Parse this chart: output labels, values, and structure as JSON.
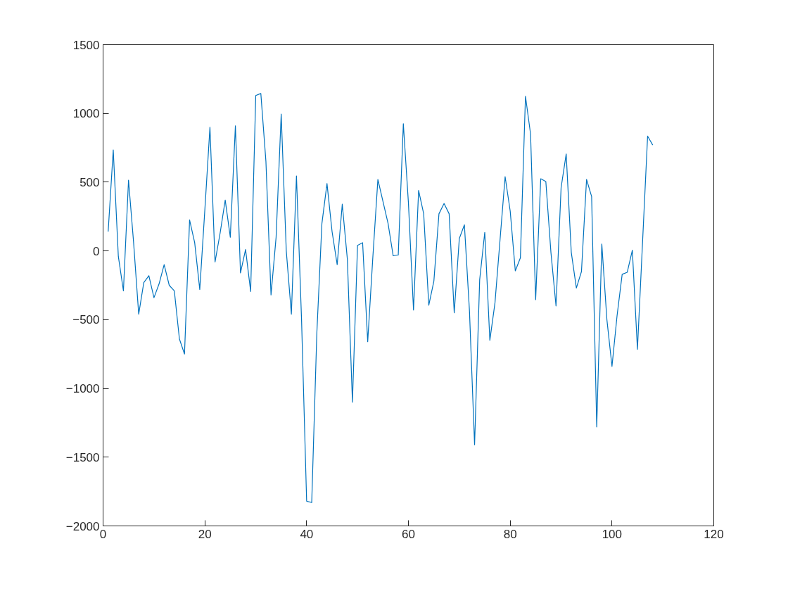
{
  "chart_data": {
    "type": "line",
    "x": [
      1,
      2,
      3,
      4,
      5,
      6,
      7,
      8,
      9,
      10,
      11,
      12,
      13,
      14,
      15,
      16,
      17,
      18,
      19,
      20,
      21,
      22,
      23,
      24,
      25,
      26,
      27,
      28,
      29,
      30,
      31,
      32,
      33,
      34,
      35,
      36,
      37,
      38,
      39,
      40,
      41,
      42,
      43,
      44,
      45,
      46,
      47,
      48,
      49,
      50,
      51,
      52,
      53,
      54,
      55,
      56,
      57,
      58,
      59,
      60,
      61,
      62,
      63,
      64,
      65,
      66,
      67,
      68,
      69,
      70,
      71,
      72,
      73,
      74,
      75,
      76,
      77,
      78,
      79,
      80,
      81,
      82,
      83,
      84,
      85,
      86,
      87,
      88,
      89,
      90,
      91,
      92,
      93,
      94,
      95,
      96,
      97,
      98,
      99,
      100,
      101,
      102,
      103,
      104,
      105,
      106,
      107,
      108
    ],
    "series": [
      {
        "color": "#0072bd",
        "values": [
          140,
          735,
          -40,
          -290,
          515,
          60,
          -460,
          -230,
          -180,
          -340,
          -240,
          -100,
          -250,
          -290,
          -640,
          -750,
          225,
          60,
          -280,
          300,
          900,
          -80,
          130,
          370,
          100,
          910,
          -160,
          10,
          -295,
          1130,
          1145,
          650,
          -320,
          100,
          995,
          0,
          -460,
          545,
          -500,
          -1820,
          -1830,
          -600,
          200,
          490,
          140,
          -100,
          340,
          -60,
          -1100,
          40,
          60,
          -660,
          -50,
          520,
          360,
          200,
          -35,
          -30,
          925,
          350,
          -430,
          440,
          270,
          -395,
          -220,
          270,
          345,
          270,
          -450,
          90,
          190,
          -440,
          -1410,
          -210,
          135,
          -650,
          -380,
          80,
          540,
          290,
          -145,
          -50,
          1125,
          850,
          -355,
          525,
          505,
          -10,
          -400,
          460,
          705,
          -10,
          -270,
          -150,
          520,
          395,
          -1280,
          50,
          -500,
          -840,
          -470,
          -170,
          -155,
          5,
          -715,
          60,
          835,
          770
        ]
      }
    ],
    "xlim": [
      0,
      120
    ],
    "xticks": [
      0,
      20,
      40,
      60,
      80,
      100,
      120
    ],
    "ylim": [
      -2000,
      1500
    ],
    "yticks": [
      -2000,
      -1500,
      -1000,
      -500,
      0,
      500,
      1000,
      1500
    ],
    "grid": false,
    "line_style": "solid"
  }
}
